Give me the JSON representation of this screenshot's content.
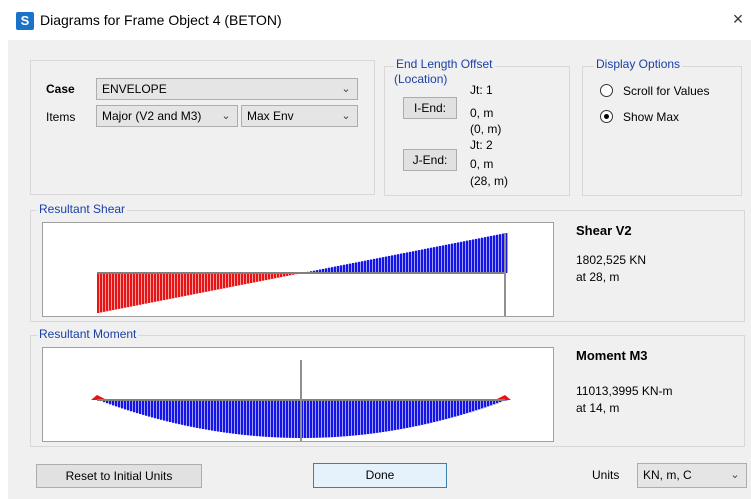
{
  "window": {
    "app_icon_letter": "S",
    "title": "Diagrams for Frame Object 4  (BETON)",
    "close_glyph": "×"
  },
  "case": {
    "label": "Case",
    "value": "ENVELOPE"
  },
  "items": {
    "label": "Items",
    "component_value": "Major (V2 and M3)",
    "envelope_value": "Max Env"
  },
  "end_length_offset": {
    "title": "End Length Offset",
    "subtitle": "(Location)",
    "i_end": {
      "button": "I-End:",
      "jt": "Jt:  1",
      "offset": "0, m",
      "location": "(0, m)"
    },
    "j_end": {
      "button": "J-End:",
      "jt": "Jt:  2",
      "offset": "0, m",
      "location": "(28, m)"
    }
  },
  "display_options": {
    "title": "Display Options",
    "scroll_label": "Scroll for Values",
    "scroll_selected": false,
    "show_max_label": "Show Max",
    "show_max_selected": true
  },
  "shear": {
    "section_label": "Resultant Shear",
    "title": "Shear V2",
    "value": "1802,525 KN",
    "location": "at 28, m"
  },
  "moment": {
    "section_label": "Resultant Moment",
    "title": "Moment M3",
    "value": "11013,3995 KN-m",
    "location": "at 14, m"
  },
  "footer": {
    "reset_label": "Reset to Initial Units",
    "done_label": "Done",
    "units_label": "Units",
    "units_value": "KN, m, C"
  },
  "colors": {
    "positive": "#1414e6",
    "negative": "#e61414",
    "section_label": "#1a3fa6"
  },
  "chart_data": [
    {
      "type": "area",
      "name": "Resultant Shear",
      "x": [
        0,
        14,
        28
      ],
      "y": [
        -1802.525,
        0,
        1802.525
      ],
      "x_unit": "m",
      "y_unit": "KN",
      "marker_x": 28
    },
    {
      "type": "area",
      "name": "Resultant Moment",
      "x": [
        0,
        14,
        28
      ],
      "y": [
        0,
        11013.3995,
        0
      ],
      "x_unit": "m",
      "y_unit": "KN-m",
      "shape": "parabolic",
      "marker_x": 14
    }
  ]
}
